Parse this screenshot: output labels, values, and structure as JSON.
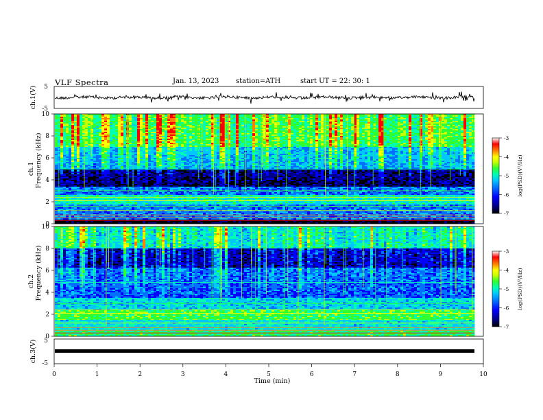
{
  "header": {
    "title": "VLF  Spectra",
    "date": "Jan.  13,  2023",
    "station": "station=ATH",
    "start_ut": "start  UT  =    22: 30: 1"
  },
  "chart_data": [
    {
      "type": "line",
      "panel": "ch1-waveform",
      "ylabel": "ch.1(V)",
      "ylim": [
        -5,
        5
      ],
      "yticks": [
        "5",
        "-5"
      ],
      "xlim": [
        0,
        10
      ]
    },
    {
      "type": "heatmap",
      "panel": "ch1-spectrogram",
      "ylabel": [
        "ch.1",
        "Frequency  (kHz)"
      ],
      "ylim": [
        0,
        10
      ],
      "yticks": [
        "10",
        "8",
        "6",
        "4",
        "2",
        "0"
      ],
      "xlim": [
        0,
        10
      ],
      "colorbar": {
        "label": "log(PSD)(V²/Hz)",
        "ticks": [
          "-3",
          "-4",
          "-5",
          "-6",
          "-7"
        ],
        "range": [
          -7,
          -3
        ]
      }
    },
    {
      "type": "heatmap",
      "panel": "ch2-spectrogram",
      "ylabel": [
        "ch.2",
        "Frequency  (kHz)"
      ],
      "ylim": [
        0,
        10
      ],
      "yticks": [
        "10",
        "8",
        "6",
        "4",
        "2",
        "0"
      ],
      "xlim": [
        0,
        10
      ],
      "colorbar": {
        "label": "log(PSD)(V²/Hz)",
        "ticks": [
          "-3",
          "-4",
          "-5",
          "-6",
          "-7"
        ],
        "range": [
          -7,
          -3
        ]
      }
    },
    {
      "type": "line",
      "panel": "ch3-waveform",
      "ylabel": "ch.3(V)",
      "ylim": [
        -5,
        5
      ],
      "yticks": [
        "5",
        "-5"
      ],
      "xlim": [
        0,
        10
      ],
      "xlabel": "Time  (min)",
      "xticks": [
        "0",
        "1",
        "2",
        "3",
        "4",
        "5",
        "6",
        "7",
        "8",
        "9",
        "10"
      ]
    }
  ],
  "colors": {
    "colormap": [
      "#000000",
      "#00008b",
      "#0000ff",
      "#0070ff",
      "#00c8ff",
      "#00ffb0",
      "#30ff30",
      "#c8ff00",
      "#ffff00",
      "#ff8000",
      "#ff0000",
      "#ffffff"
    ]
  }
}
